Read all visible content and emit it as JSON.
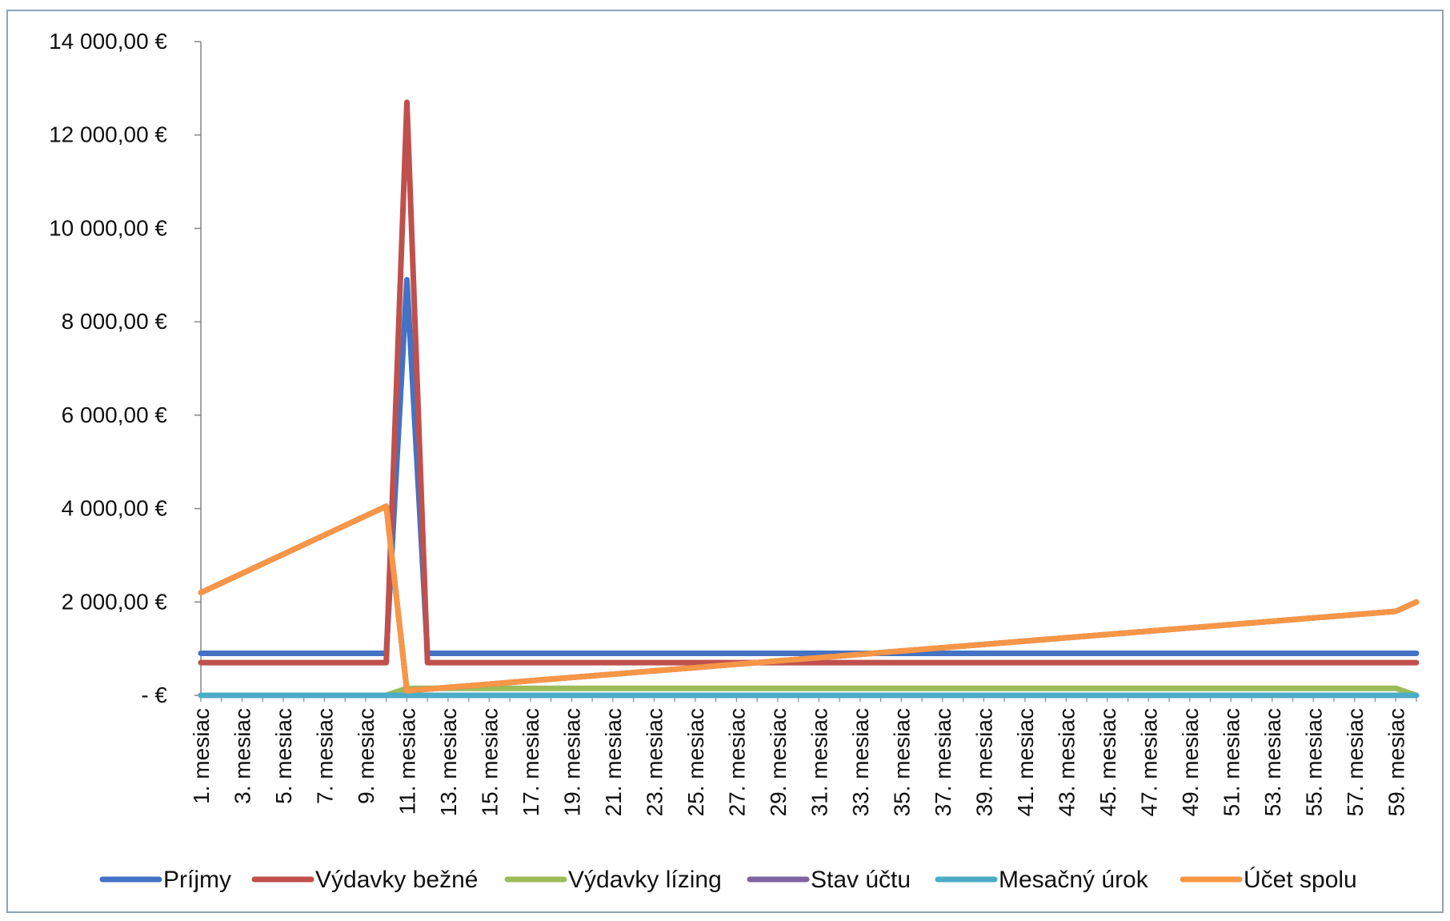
{
  "chart_data": {
    "type": "line",
    "title": "",
    "xlabel": "",
    "ylabel": "",
    "ylim": [
      0,
      14000
    ],
    "y_ticks": [
      {
        "value": 0,
        "label": "-   €"
      },
      {
        "value": 2000,
        "label": "2 000,00 €"
      },
      {
        "value": 4000,
        "label": "4 000,00 €"
      },
      {
        "value": 6000,
        "label": "6 000,00 €"
      },
      {
        "value": 8000,
        "label": "8 000,00 €"
      },
      {
        "value": 10000,
        "label": "10 000,00 €"
      },
      {
        "value": 12000,
        "label": "12 000,00 €"
      },
      {
        "value": 14000,
        "label": "14 000,00 €"
      }
    ],
    "x_tick_labels": [
      "1. mesiac",
      "3. mesiac",
      "5. mesiac",
      "7. mesiac",
      "9. mesiac",
      "11. mesiac",
      "13. mesiac",
      "15. mesiac",
      "17. mesiac",
      "19. mesiac",
      "21. mesiac",
      "23. mesiac",
      "25. mesiac",
      "27. mesiac",
      "29. mesiac",
      "31. mesiac",
      "33. mesiac",
      "35. mesiac",
      "37. mesiac",
      "39. mesiac",
      "41. mesiac",
      "43. mesiac",
      "45. mesiac",
      "47. mesiac",
      "49. mesiac",
      "51. mesiac",
      "53. mesiac",
      "55. mesiac",
      "57. mesiac",
      "59. mesiac"
    ],
    "grid": false,
    "legend_position": "bottom",
    "series": [
      {
        "name": "Príjmy",
        "color": "#4472C4",
        "points": [
          [
            1,
            900
          ],
          [
            10,
            900
          ],
          [
            11,
            8900
          ],
          [
            12,
            900
          ],
          [
            60,
            900
          ]
        ]
      },
      {
        "name": "Výdavky bežné",
        "color": "#C0504D",
        "points": [
          [
            1,
            700
          ],
          [
            10,
            700
          ],
          [
            11,
            12700
          ],
          [
            12,
            700
          ],
          [
            60,
            700
          ]
        ]
      },
      {
        "name": "Výdavky lízing",
        "color": "#9BBB59",
        "points": [
          [
            1,
            0
          ],
          [
            10,
            0
          ],
          [
            11,
            150
          ],
          [
            59,
            150
          ],
          [
            60,
            0
          ]
        ]
      },
      {
        "name": "Stav účtu",
        "color": "#8064A2",
        "points": [
          [
            1,
            2200
          ],
          [
            10,
            4050
          ],
          [
            11,
            100
          ],
          [
            59,
            1800
          ],
          [
            60,
            2000
          ]
        ]
      },
      {
        "name": "Mesačný úrok",
        "color": "#4BACC6",
        "points": [
          [
            1,
            0
          ],
          [
            60,
            0
          ]
        ]
      },
      {
        "name": "Účet spolu",
        "color": "#F79646",
        "points": [
          [
            1,
            2200
          ],
          [
            10,
            4050
          ],
          [
            11,
            100
          ],
          [
            59,
            1800
          ],
          [
            60,
            2000
          ]
        ]
      }
    ]
  }
}
